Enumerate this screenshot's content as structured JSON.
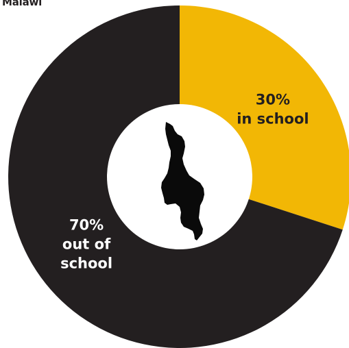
{
  "title": "Malawi",
  "chart_data": {
    "type": "pie",
    "categories": [
      "in school",
      "out of school"
    ],
    "values": [
      30,
      70
    ],
    "slices": [
      {
        "name": "in school",
        "value": 30,
        "label_lines": [
          "30%",
          "in school"
        ],
        "color": "#f2b705",
        "text_color": "#231f20"
      },
      {
        "name": "out of school",
        "value": 70,
        "label_lines": [
          "70%",
          "out of",
          "school"
        ],
        "color": "#231f20",
        "text_color": "#ffffff"
      }
    ],
    "center_icon": "malawi-map-silhouette"
  }
}
